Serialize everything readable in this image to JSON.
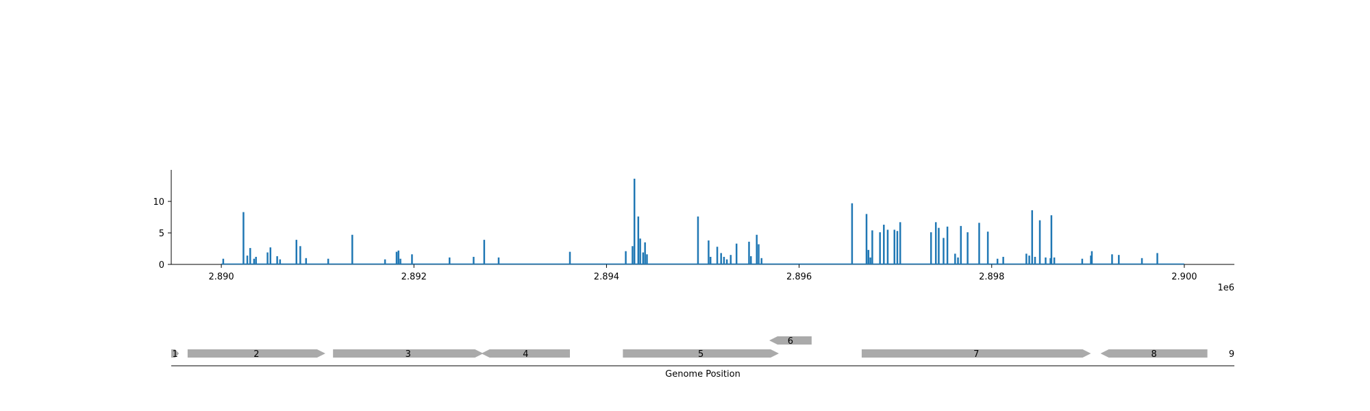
{
  "chart_data": [
    {
      "type": "bar",
      "panel": "coverage",
      "title": "",
      "xlabel": "",
      "ylabel": "",
      "x_offset_label": "1e6",
      "xlim": [
        2889480,
        2900520
      ],
      "ylim": [
        0,
        15
      ],
      "xticks": [
        2890000,
        2892000,
        2894000,
        2896000,
        2898000,
        2900000
      ],
      "xtick_labels": [
        "2.890",
        "2.892",
        "2.894",
        "2.896",
        "2.898",
        "2.900"
      ],
      "yticks": [
        0,
        5,
        10
      ],
      "ytick_labels": [
        "0",
        "5",
        "10"
      ],
      "grid": false,
      "color": "#1f77b4",
      "baseline_range": [
        2890000,
        2900000
      ],
      "x": [
        2890020,
        2890230,
        2890270,
        2890300,
        2890340,
        2890360,
        2890480,
        2890510,
        2890580,
        2890610,
        2890780,
        2890820,
        2890880,
        2891110,
        2891360,
        2891700,
        2891820,
        2891840,
        2891860,
        2891980,
        2892370,
        2892620,
        2892730,
        2892880,
        2893620,
        2894200,
        2894270,
        2894290,
        2894330,
        2894350,
        2894380,
        2894400,
        2894420,
        2894950,
        2895060,
        2895080,
        2895150,
        2895190,
        2895220,
        2895250,
        2895290,
        2895350,
        2895480,
        2895500,
        2895560,
        2895580,
        2895610,
        2896550,
        2896700,
        2896720,
        2896740,
        2896760,
        2896840,
        2896880,
        2896920,
        2896990,
        2897020,
        2897050,
        2897370,
        2897420,
        2897450,
        2897500,
        2897540,
        2897620,
        2897650,
        2897680,
        2897750,
        2897870,
        2897960,
        2898060,
        2898120,
        2898360,
        2898390,
        2898420,
        2898450,
        2898500,
        2898560,
        2898610,
        2898620,
        2898650,
        2898940,
        2899030,
        2899040,
        2899250,
        2899320,
        2899560,
        2899720
      ],
      "values": [
        0.9,
        8.3,
        1.4,
        2.6,
        0.9,
        1.2,
        1.9,
        2.7,
        1.3,
        0.8,
        3.9,
        2.9,
        1.0,
        0.9,
        4.7,
        0.8,
        2.0,
        2.2,
        0.9,
        1.6,
        1.1,
        1.2,
        3.9,
        1.1,
        2.0,
        2.1,
        2.9,
        13.6,
        7.6,
        4.1,
        1.9,
        3.5,
        1.6,
        7.6,
        3.8,
        1.2,
        2.8,
        1.8,
        1.2,
        0.8,
        1.5,
        3.3,
        3.6,
        1.3,
        4.7,
        3.2,
        1.0,
        9.7,
        8.0,
        2.3,
        1.1,
        5.4,
        5.1,
        6.3,
        5.5,
        5.5,
        5.3,
        6.7,
        5.1,
        6.7,
        5.8,
        4.2,
        6.0,
        1.7,
        1.1,
        6.1,
        5.1,
        6.6,
        5.2,
        0.9,
        1.2,
        1.7,
        1.4,
        8.6,
        1.2,
        7.0,
        1.1,
        1.0,
        7.8,
        1.1,
        0.9,
        1.4,
        2.1,
        1.6,
        1.5,
        1.0,
        1.8
      ]
    },
    {
      "type": "gene_map",
      "panel": "annotation",
      "xlabel": "Genome Position",
      "xlim": [
        2889480,
        2900520
      ],
      "features": [
        {
          "label": "1",
          "start": 2889480,
          "end": 2889560,
          "strand": 1,
          "row": 0
        },
        {
          "label": "2",
          "start": 2889650,
          "end": 2891080,
          "strand": 1,
          "row": 0
        },
        {
          "label": "3",
          "start": 2891160,
          "end": 2892720,
          "strand": 1,
          "row": 0
        },
        {
          "label": "4",
          "start": 2892700,
          "end": 2893620,
          "strand": -1,
          "row": 0
        },
        {
          "label": "5",
          "start": 2894170,
          "end": 2895790,
          "strand": 1,
          "row": 0
        },
        {
          "label": "6",
          "start": 2895690,
          "end": 2896130,
          "strand": -1,
          "row": 1
        },
        {
          "label": "7",
          "start": 2896650,
          "end": 2899030,
          "strand": 1,
          "row": 0
        },
        {
          "label": "8",
          "start": 2899130,
          "end": 2900240,
          "strand": -1,
          "row": 0
        },
        {
          "label": "9",
          "start": 2900520,
          "end": 2900520,
          "strand": 1,
          "row": 0
        }
      ],
      "feature_color": "#aaaaaa"
    }
  ]
}
